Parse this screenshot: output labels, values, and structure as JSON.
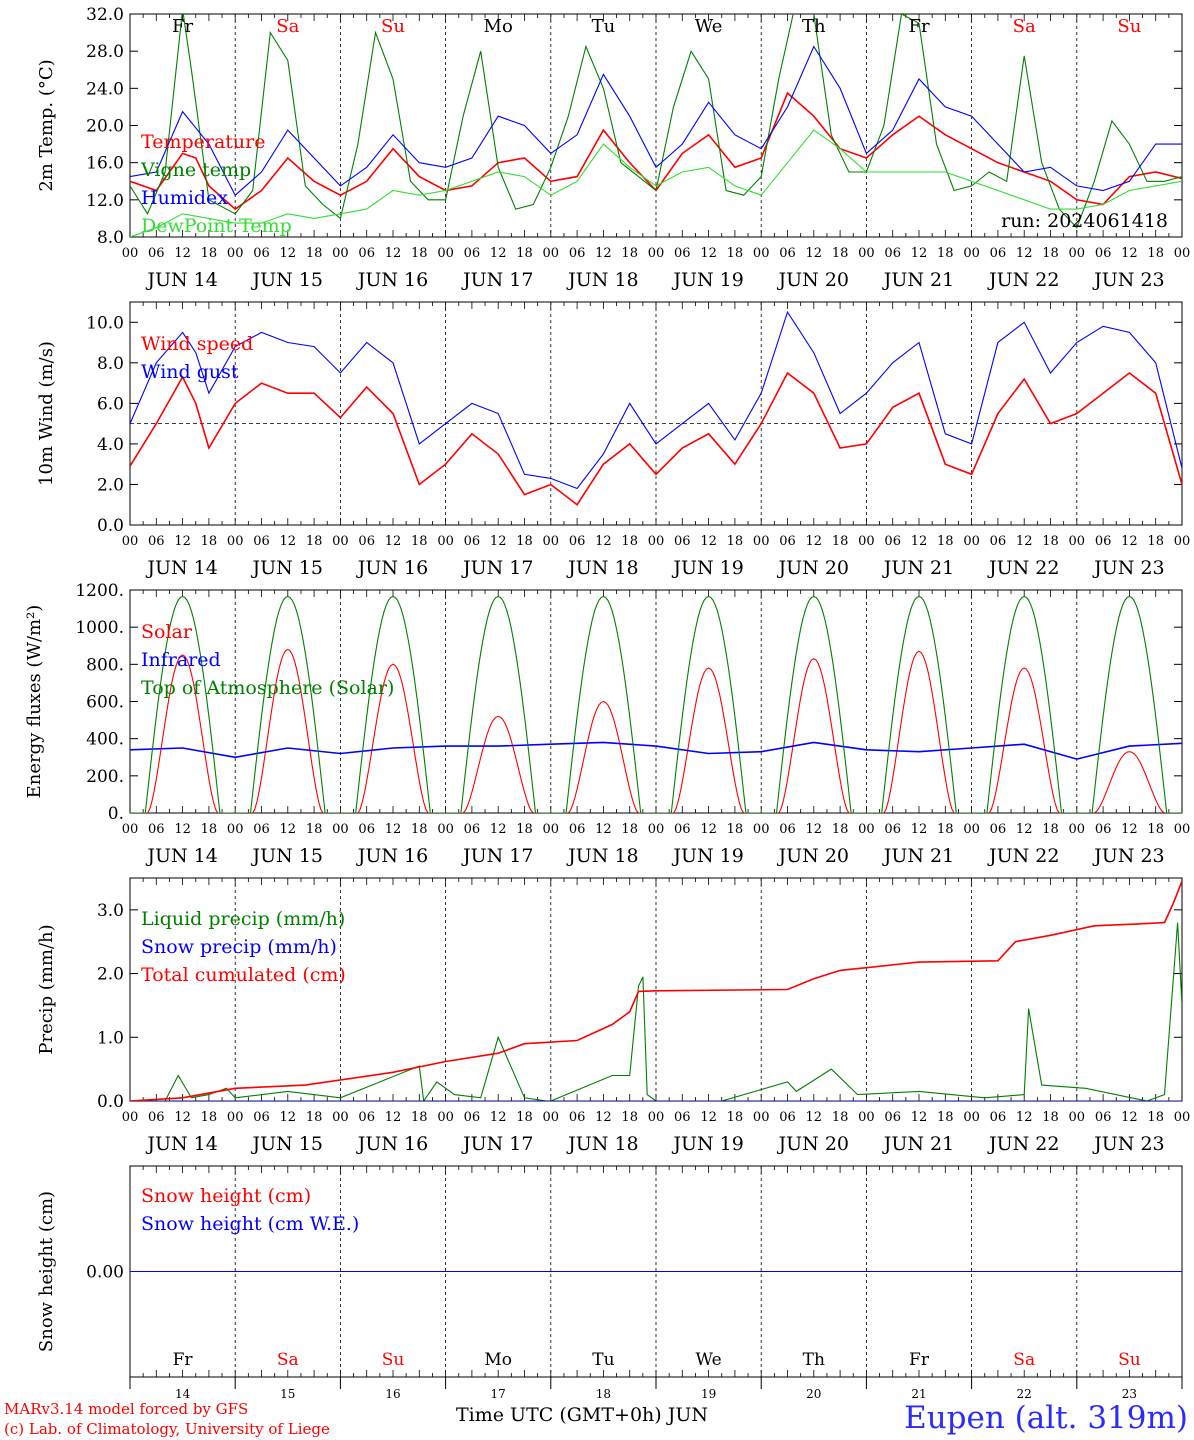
{
  "chart_data": [
    {
      "type": "line",
      "ylabel": "2m Temp. (°C)",
      "ylim": [
        8,
        32
      ],
      "yticks": [
        "8.0",
        "12.0",
        "16.0",
        "20.0",
        "24.0",
        "28.0",
        "32.0"
      ],
      "x_unit": "hours since JUN 14 00 UTC",
      "day_letters": [
        "Fr",
        "Sa",
        "Su",
        "Mo",
        "Tu",
        "We",
        "Th",
        "Fr",
        "Sa",
        "Su"
      ],
      "day_letter_colors": [
        "#000000",
        "#ff0000",
        "#ff0000",
        "#000000",
        "#000000",
        "#000000",
        "#000000",
        "#000000",
        "#ff0000",
        "#ff0000"
      ],
      "annotation": "run: 2024061418",
      "series": [
        {
          "name": "Temperature",
          "color": "#ff0000",
          "x": [
            0,
            6,
            12,
            15,
            18,
            24,
            30,
            36,
            42,
            48,
            54,
            60,
            66,
            72,
            78,
            84,
            90,
            96,
            102,
            108,
            114,
            120,
            126,
            132,
            138,
            144,
            150,
            156,
            162,
            168,
            174,
            180,
            186,
            192,
            198,
            204,
            210,
            216,
            222,
            228,
            234,
            240
          ],
          "y": [
            14.0,
            13.0,
            17.0,
            16.5,
            13.5,
            11.0,
            13.0,
            16.5,
            14.0,
            12.5,
            14.0,
            17.5,
            14.5,
            13.0,
            13.5,
            16.0,
            16.5,
            14.0,
            14.5,
            19.5,
            16.0,
            13.0,
            17.0,
            19.0,
            15.5,
            16.5,
            23.5,
            21.0,
            17.5,
            16.5,
            19.0,
            21.0,
            19.0,
            17.5,
            16.0,
            15.0,
            14.0,
            12.0,
            11.5,
            14.5,
            15.0,
            14.3
          ]
        },
        {
          "name": "Vigne temp",
          "color": "#008000",
          "x": [
            0,
            4,
            8,
            12,
            14,
            18,
            24,
            28,
            32,
            36,
            40,
            44,
            48,
            52,
            56,
            60,
            64,
            68,
            72,
            76,
            80,
            84,
            88,
            92,
            96,
            100,
            104,
            108,
            112,
            116,
            120,
            124,
            128,
            132,
            136,
            140,
            144,
            148,
            152,
            156,
            160,
            164,
            168,
            172,
            176,
            180,
            184,
            188,
            192,
            196,
            200,
            204,
            208,
            212,
            216,
            220,
            224,
            228,
            232,
            236,
            240
          ],
          "y": [
            13.5,
            10.5,
            15.0,
            32.5,
            26.0,
            12.0,
            10.5,
            13.0,
            30.0,
            27.0,
            13.5,
            11.5,
            10.0,
            18.0,
            30.0,
            25.0,
            14.0,
            12.0,
            12.0,
            21.0,
            28.0,
            15.5,
            11.0,
            11.5,
            15.5,
            21.0,
            28.5,
            24.0,
            16.0,
            14.5,
            13.0,
            22.0,
            28.0,
            25.0,
            13.0,
            12.5,
            14.5,
            25.0,
            33.5,
            32.0,
            19.0,
            15.0,
            15.0,
            20.0,
            32.0,
            31.0,
            18.0,
            13.0,
            13.5,
            15.0,
            14.0,
            27.5,
            16.0,
            11.0,
            9.0,
            14.0,
            20.5,
            18.0,
            14.0,
            14.0,
            14.5
          ]
        },
        {
          "name": "Humidex",
          "color": "#0000ff",
          "x": [
            0,
            6,
            12,
            18,
            24,
            30,
            36,
            42,
            48,
            54,
            60,
            66,
            72,
            78,
            84,
            90,
            96,
            102,
            108,
            114,
            120,
            126,
            132,
            138,
            144,
            150,
            156,
            162,
            168,
            174,
            180,
            186,
            192,
            198,
            204,
            210,
            216,
            222,
            228,
            234,
            240
          ],
          "y": [
            14.5,
            15.0,
            21.5,
            18.0,
            12.5,
            15.0,
            19.5,
            16.5,
            13.5,
            15.5,
            19.0,
            16.0,
            15.5,
            16.5,
            21.0,
            20.0,
            17.0,
            19.0,
            25.5,
            21.0,
            15.5,
            18.0,
            22.5,
            19.0,
            17.5,
            22.0,
            28.5,
            24.0,
            17.0,
            19.5,
            25.0,
            22.0,
            21.0,
            18.0,
            15.0,
            15.5,
            13.5,
            13.0,
            14.0,
            18.0,
            18.0
          ]
        },
        {
          "name": "DewPoint Temp",
          "color": "#33dd33",
          "x": [
            0,
            6,
            12,
            18,
            24,
            30,
            36,
            42,
            48,
            54,
            60,
            66,
            72,
            78,
            84,
            90,
            96,
            102,
            108,
            114,
            120,
            126,
            132,
            138,
            144,
            150,
            156,
            162,
            168,
            174,
            180,
            186,
            192,
            198,
            204,
            210,
            216,
            222,
            228,
            234,
            240
          ],
          "y": [
            8.0,
            9.0,
            10.5,
            10.0,
            9.5,
            9.5,
            10.5,
            10.0,
            10.5,
            11.0,
            13.0,
            12.5,
            13.0,
            14.0,
            15.0,
            14.5,
            12.5,
            14.0,
            18.0,
            15.5,
            13.5,
            15.0,
            15.5,
            13.5,
            12.5,
            16.0,
            19.5,
            17.5,
            15.0,
            15.0,
            15.0,
            15.0,
            14.0,
            13.0,
            12.0,
            11.0,
            11.0,
            11.5,
            13.0,
            13.5,
            14.0
          ]
        }
      ]
    },
    {
      "type": "line",
      "ylabel": "10m Wind (m/s)",
      "ylim": [
        0,
        11
      ],
      "yticks": [
        "0.0",
        "2.0",
        "4.0",
        "6.0",
        "8.0",
        "10.0"
      ],
      "reference_line": 5.0,
      "series": [
        {
          "name": "Wind speed",
          "color": "#ff0000",
          "x": [
            0,
            6,
            12,
            15,
            18,
            24,
            30,
            36,
            42,
            48,
            54,
            60,
            66,
            72,
            78,
            84,
            90,
            96,
            102,
            108,
            114,
            120,
            126,
            132,
            138,
            144,
            150,
            156,
            162,
            168,
            174,
            180,
            186,
            192,
            198,
            204,
            210,
            216,
            222,
            228,
            234,
            240
          ],
          "y": [
            2.9,
            5.0,
            7.3,
            6.0,
            3.8,
            6.0,
            7.0,
            6.5,
            6.5,
            5.3,
            6.8,
            5.5,
            2.0,
            3.0,
            4.5,
            3.5,
            1.5,
            2.0,
            1.0,
            3.0,
            4.0,
            2.5,
            3.8,
            4.5,
            3.0,
            5.0,
            7.5,
            6.5,
            3.8,
            4.0,
            5.8,
            6.5,
            3.0,
            2.5,
            5.5,
            7.2,
            5.0,
            5.5,
            6.5,
            7.5,
            6.5,
            2.0
          ]
        },
        {
          "name": "Wind gust",
          "color": "#0000ff",
          "x": [
            0,
            6,
            12,
            15,
            18,
            24,
            30,
            36,
            42,
            48,
            54,
            60,
            66,
            72,
            78,
            84,
            90,
            96,
            102,
            108,
            114,
            120,
            126,
            132,
            138,
            144,
            150,
            156,
            162,
            168,
            174,
            180,
            186,
            192,
            198,
            204,
            210,
            216,
            222,
            228,
            234,
            240
          ],
          "y": [
            5.0,
            8.0,
            9.5,
            8.5,
            6.5,
            8.8,
            9.5,
            9.0,
            8.8,
            7.5,
            9.0,
            8.0,
            4.0,
            5.0,
            6.0,
            5.5,
            2.5,
            2.3,
            1.8,
            3.5,
            6.0,
            4.0,
            5.0,
            6.0,
            4.2,
            6.5,
            10.5,
            8.5,
            5.5,
            6.5,
            8.0,
            9.0,
            4.5,
            4.0,
            9.0,
            10.0,
            7.5,
            9.0,
            9.8,
            9.5,
            8.0,
            2.8
          ]
        }
      ]
    },
    {
      "type": "line",
      "ylabel": "Energy fluxes (W/m²)",
      "ylim": [
        0,
        1200
      ],
      "yticks": [
        "0.",
        "200.",
        "400.",
        "600.",
        "800.",
        "1000.",
        "1200."
      ],
      "series": [
        {
          "name": "Solar",
          "color": "#ff0000",
          "day_peaks": [
            850,
            880,
            800,
            520,
            600,
            780,
            830,
            870,
            780,
            330
          ]
        },
        {
          "name": "Infrared",
          "color": "#0000ff",
          "x": [
            0,
            12,
            24,
            36,
            48,
            60,
            72,
            84,
            96,
            108,
            120,
            132,
            144,
            156,
            168,
            180,
            192,
            204,
            216,
            228,
            240
          ],
          "y": [
            340,
            350,
            300,
            350,
            320,
            350,
            360,
            360,
            370,
            380,
            360,
            320,
            330,
            380,
            340,
            330,
            350,
            370,
            290,
            360,
            375
          ]
        },
        {
          "name": "Top of Atmosphere (Solar)",
          "color": "#008000",
          "peak": 1165,
          "sunrise_hour": 3.5,
          "sunset_hour": 20.5
        }
      ]
    },
    {
      "type": "line",
      "ylabel": "Precip (mm/h)",
      "ylim": [
        0,
        3.5
      ],
      "yticks": [
        "0.0",
        "1.0",
        "2.0",
        "3.0"
      ],
      "series": [
        {
          "name": "Liquid precip (mm/h)",
          "color": "#008000",
          "x": [
            0,
            8,
            11,
            14,
            18,
            22,
            24,
            36,
            48,
            66,
            67,
            70,
            74,
            80,
            84,
            90,
            95,
            96,
            110,
            114,
            116,
            117,
            118,
            120,
            135,
            150,
            152,
            160,
            166,
            180,
            195,
            204,
            205,
            208,
            218,
            232,
            236,
            239,
            240
          ],
          "y": [
            0.0,
            0.0,
            0.4,
            0.05,
            0.1,
            0.2,
            0.05,
            0.15,
            0.05,
            0.55,
            0.0,
            0.3,
            0.1,
            0.05,
            1.0,
            0.05,
            0.0,
            0.0,
            0.4,
            0.4,
            1.8,
            1.95,
            0.1,
            0.0,
            0.0,
            0.3,
            0.15,
            0.5,
            0.1,
            0.15,
            0.05,
            0.1,
            1.45,
            0.25,
            0.2,
            0.0,
            0.1,
            2.8,
            1.5
          ]
        },
        {
          "name": "Snow precip (mm/h)",
          "color": "#0000ff",
          "x": [
            0,
            240
          ],
          "y": [
            0.0,
            0.0
          ]
        },
        {
          "name": "Total cumulated (cm)",
          "color": "#ff0000",
          "x": [
            0,
            12,
            24,
            40,
            60,
            72,
            84,
            90,
            102,
            110,
            114,
            116,
            120,
            150,
            156,
            162,
            180,
            198,
            202,
            210,
            220,
            230,
            236,
            238,
            240
          ],
          "y": [
            0.0,
            0.05,
            0.2,
            0.25,
            0.45,
            0.62,
            0.75,
            0.9,
            0.95,
            1.2,
            1.4,
            1.72,
            1.73,
            1.75,
            1.92,
            2.05,
            2.18,
            2.2,
            2.5,
            2.6,
            2.75,
            2.78,
            2.8,
            3.1,
            3.45
          ]
        }
      ]
    },
    {
      "type": "line",
      "ylabel": "Snow height (cm)",
      "ylim": [
        -1,
        1
      ],
      "yticks": [
        "0.00"
      ],
      "series": [
        {
          "name": "Snow height (cm)",
          "color": "#ff0000",
          "x": [
            0,
            240
          ],
          "y": [
            0,
            0
          ]
        },
        {
          "name": "Snow height (cm W.E.)",
          "color": "#0000ff",
          "x": [
            0,
            240
          ],
          "y": [
            0,
            0
          ]
        }
      ]
    }
  ],
  "x_axis": {
    "hour_labels": [
      "00",
      "06",
      "12",
      "18"
    ],
    "final_label": "00",
    "date_labels": [
      "JUN 14",
      "JUN 15",
      "JUN 16",
      "JUN 17",
      "JUN 18",
      "JUN 19",
      "JUN 20",
      "JUN 21",
      "JUN 22",
      "JUN 23"
    ],
    "day_numbers": [
      "14",
      "15",
      "16",
      "17",
      "18",
      "19",
      "20",
      "21",
      "22",
      "23"
    ],
    "bottom_day_letters": [
      "Fr",
      "Sa",
      "Su",
      "Mo",
      "Tu",
      "We",
      "Th",
      "Fr",
      "Sa",
      "Su"
    ]
  },
  "footer": {
    "credit_line1": "MARv3.14 model forced by GFS",
    "credit_line2": "(c) Lab. of Climatology, University of Liege",
    "xlabel": "Time UTC (GMT+0h) JUN",
    "station": "Eupen (alt. 319m)"
  }
}
